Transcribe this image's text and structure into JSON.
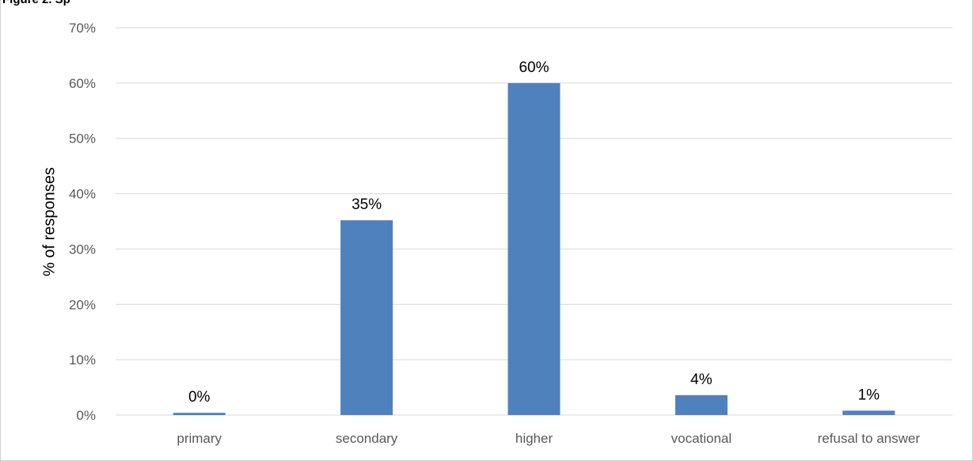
{
  "header": {
    "cut_title": "Figure 2. Sp"
  },
  "chart_data": {
    "type": "bar",
    "title": "",
    "xlabel": "",
    "ylabel": "% of responses",
    "categories": [
      "primary",
      "secondary",
      "higher",
      "vocational",
      "refusal to answer"
    ],
    "values": [
      0.4,
      35.2,
      60.0,
      3.6,
      0.8
    ],
    "data_labels": [
      "0%",
      "35%",
      "60%",
      "4%",
      "1%"
    ],
    "ylim": [
      0,
      70
    ],
    "yticks": [
      0,
      10,
      20,
      30,
      40,
      50,
      60,
      70
    ],
    "ytick_labels": [
      "0%",
      "10%",
      "20%",
      "30%",
      "40%",
      "50%",
      "60%",
      "70%"
    ],
    "grid": true,
    "legend": "none",
    "bar_color": "#4F81BD",
    "grid_color": "#D9D9D9"
  }
}
